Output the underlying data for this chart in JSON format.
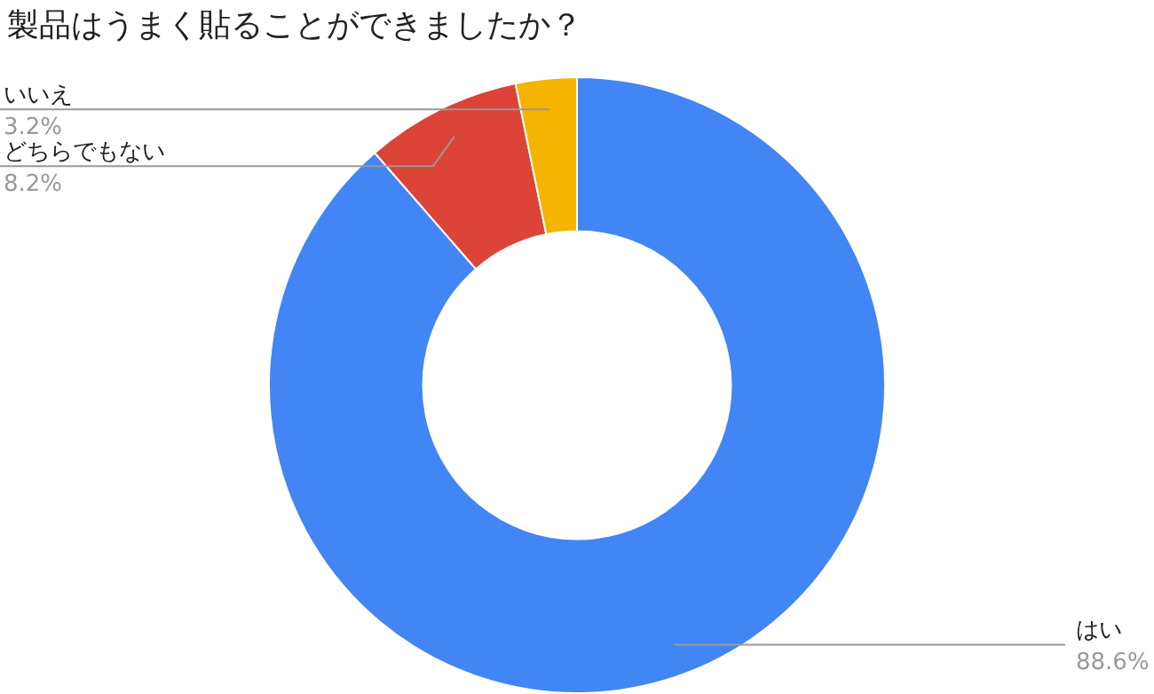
{
  "chart_data": {
    "type": "donut",
    "title": "製品はうまく貼ることができましたか？",
    "categories": [
      "はい",
      "どちらでもない",
      "いいえ"
    ],
    "values": [
      88.6,
      8.2,
      3.2
    ],
    "colors": [
      "#4285f4",
      "#db4437",
      "#f4b400"
    ],
    "value_labels": [
      "88.6%",
      "8.2%",
      "3.2%"
    ]
  }
}
